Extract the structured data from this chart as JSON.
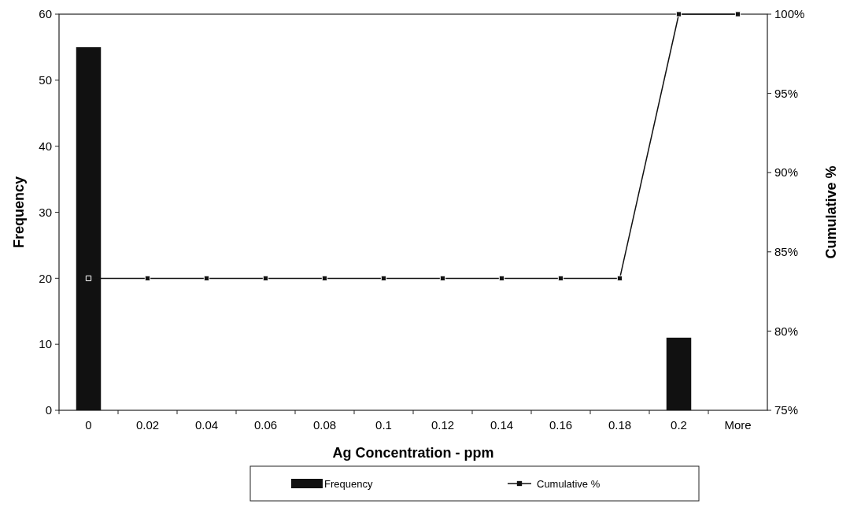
{
  "chart_data": {
    "type": "bar",
    "xlabel": "Ag Concentration - ppm",
    "ylabel": "Frequency",
    "y2label": "Cumulative %",
    "categories": [
      "0",
      "0.02",
      "0.04",
      "0.06",
      "0.08",
      "0.1",
      "0.12",
      "0.14",
      "0.16",
      "0.18",
      "0.2",
      "More"
    ],
    "series": [
      {
        "name": "Frequency",
        "color": "#111111",
        "values": [
          55,
          0,
          0,
          0,
          0,
          0,
          0,
          0,
          0,
          0,
          11,
          0
        ]
      },
      {
        "name": "Cumulative %",
        "type": "line",
        "axis": "y2",
        "color": "#111111",
        "marker": "square",
        "values": [
          83.33,
          83.33,
          83.33,
          83.33,
          83.33,
          83.33,
          83.33,
          83.33,
          83.33,
          83.33,
          100,
          100
        ]
      }
    ],
    "ylim": [
      0,
      60
    ],
    "yticks": [
      0,
      10,
      20,
      30,
      40,
      50,
      60
    ],
    "y2lim": [
      75,
      100
    ],
    "y2ticks": [
      {
        "value": 75,
        "label": "75%"
      },
      {
        "value": 80,
        "label": "80%"
      },
      {
        "value": 85,
        "label": "85%"
      },
      {
        "value": 90,
        "label": "90%"
      },
      {
        "value": 95,
        "label": "95%"
      },
      {
        "value": 100,
        "label": "100%"
      }
    ],
    "grid": false,
    "legend": "bottom"
  }
}
